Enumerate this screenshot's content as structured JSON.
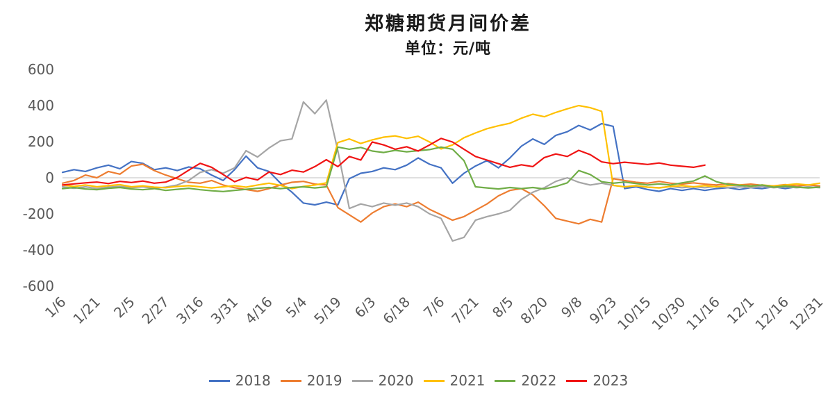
{
  "title": "郑糖期货月间价差",
  "subtitle": "单位：元/吨",
  "chart_data": {
    "type": "line",
    "title": "郑糖期货月间价差",
    "subtitle": "单位：元/吨",
    "xlabel": "",
    "ylabel": "",
    "ylim": [
      -600,
      600
    ],
    "y_ticks": [
      600,
      400,
      200,
      0,
      -200,
      -400,
      -600
    ],
    "grid": false,
    "legend_position": "bottom",
    "x_labels": [
      "1/6",
      "1/21",
      "2/5",
      "2/27",
      "3/16",
      "3/31",
      "4/16",
      "5/4",
      "5/19",
      "6/3",
      "6/18",
      "7/6",
      "7/21",
      "8/5",
      "8/20",
      "9/8",
      "9/23",
      "10/15",
      "10/30",
      "11/16",
      "12/1",
      "12/16",
      "12/31"
    ],
    "points_per_label_interval": 3,
    "series": [
      {
        "name": "2018",
        "color": "#4472C4",
        "values": [
          30,
          45,
          35,
          55,
          70,
          50,
          90,
          80,
          45,
          55,
          40,
          60,
          50,
          15,
          -15,
          45,
          120,
          55,
          35,
          -30,
          -80,
          -140,
          -150,
          -135,
          -150,
          -5,
          25,
          35,
          55,
          45,
          70,
          110,
          75,
          55,
          -30,
          25,
          65,
          95,
          55,
          110,
          175,
          215,
          185,
          235,
          255,
          290,
          265,
          300,
          285,
          -60,
          -50,
          -65,
          -75,
          -60,
          -70,
          -60,
          -70,
          -60,
          -55,
          -65,
          -55,
          -60,
          -50,
          -60,
          -50,
          -55,
          -50
        ]
      },
      {
        "name": "2019",
        "color": "#ED7D31",
        "values": [
          -30,
          -15,
          15,
          0,
          35,
          20,
          65,
          75,
          40,
          15,
          -5,
          -25,
          -30,
          -15,
          -40,
          -55,
          -65,
          -75,
          -60,
          -40,
          -25,
          -20,
          -35,
          -40,
          -165,
          -205,
          -245,
          -195,
          -160,
          -145,
          -160,
          -135,
          -175,
          -205,
          -235,
          -215,
          -180,
          -145,
          -100,
          -70,
          -60,
          -95,
          -155,
          -225,
          -240,
          -255,
          -230,
          -245,
          -5,
          -15,
          -25,
          -30,
          -20,
          -30,
          -35,
          -28,
          -35,
          -40,
          -32,
          -40,
          -35,
          -42,
          -45,
          -38,
          -45,
          -40,
          -45
        ]
      },
      {
        "name": "2020",
        "color": "#A5A5A5",
        "values": [
          -50,
          -58,
          -50,
          -60,
          -52,
          -48,
          -55,
          -50,
          -58,
          -52,
          -40,
          -15,
          30,
          45,
          25,
          55,
          150,
          115,
          165,
          205,
          215,
          420,
          355,
          430,
          150,
          -170,
          -145,
          -160,
          -140,
          -152,
          -140,
          -160,
          -200,
          -225,
          -350,
          -330,
          -235,
          -215,
          -200,
          -180,
          -120,
          -80,
          -55,
          -20,
          0,
          -25,
          -40,
          -30,
          -42,
          -50,
          -45,
          -52,
          -55,
          -48,
          -55,
          -50,
          -55,
          -48,
          -55,
          -50,
          -55,
          -48,
          -55,
          -50,
          -55,
          -50,
          -55
        ]
      },
      {
        "name": "2021",
        "color": "#FFC000",
        "values": [
          -40,
          -48,
          -40,
          -50,
          -44,
          -38,
          -50,
          -45,
          -52,
          -55,
          -48,
          -44,
          -50,
          -56,
          -50,
          -44,
          -52,
          -40,
          -30,
          -42,
          -60,
          -48,
          -40,
          -28,
          195,
          215,
          190,
          210,
          225,
          232,
          218,
          230,
          198,
          160,
          182,
          222,
          248,
          272,
          288,
          302,
          330,
          352,
          338,
          362,
          382,
          400,
          388,
          368,
          -42,
          -50,
          -44,
          -52,
          -56,
          -48,
          -44,
          -50,
          -44,
          -50,
          -44,
          -40,
          -46,
          -40,
          -46,
          -40,
          -34,
          -40,
          -30
        ]
      },
      {
        "name": "2022",
        "color": "#70AD47",
        "values": [
          -60,
          -54,
          -62,
          -66,
          -58,
          -54,
          -62,
          -66,
          -60,
          -70,
          -64,
          -58,
          -66,
          -72,
          -76,
          -70,
          -64,
          -58,
          -54,
          -60,
          -54,
          -50,
          -56,
          -50,
          170,
          158,
          168,
          148,
          140,
          152,
          144,
          150,
          156,
          170,
          158,
          95,
          -50,
          -56,
          -62,
          -54,
          -60,
          -54,
          -62,
          -48,
          -28,
          40,
          18,
          -22,
          -30,
          -24,
          -32,
          -40,
          -34,
          -40,
          -28,
          -18,
          10,
          -22,
          -36,
          -42,
          -46,
          -40,
          -52,
          -46,
          -52,
          -56,
          -52
        ]
      },
      {
        "name": "2023",
        "color": "#F01414",
        "values": [
          -40,
          -34,
          -28,
          -24,
          -32,
          -20,
          -26,
          -18,
          -30,
          -24,
          2,
          42,
          80,
          58,
          18,
          -22,
          2,
          -12,
          32,
          18,
          42,
          32,
          62,
          100,
          62,
          118,
          98,
          198,
          182,
          158,
          172,
          148,
          182,
          218,
          198,
          158,
          118,
          98,
          78,
          58,
          72,
          62,
          112,
          132,
          118,
          152,
          128,
          88,
          78,
          86,
          80,
          74,
          82,
          70,
          64,
          58,
          70,
          null,
          null,
          null,
          null,
          null,
          null,
          null,
          null,
          null,
          null
        ]
      }
    ]
  }
}
